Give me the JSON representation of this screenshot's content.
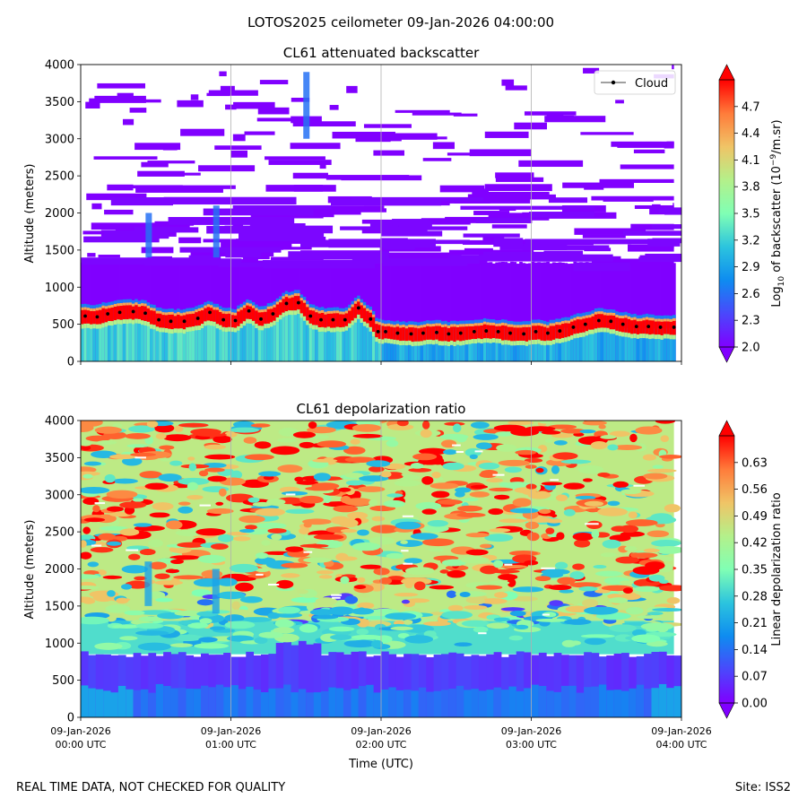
{
  "suptitle": "LOTOS2025 ceilometer 09-Jan-2026 04:00:00",
  "footer_left": "REAL TIME DATA, NOT CHECKED FOR QUALITY",
  "footer_right": "Site: ISS2",
  "chart_data": [
    {
      "type": "heatmap",
      "title": "CL61 attenuated backscatter",
      "ylabel": "Altitude (meters)",
      "xlabel": "",
      "xlim": [
        "09-Jan-2026 00:00 UTC",
        "09-Jan-2026 04:00 UTC"
      ],
      "ylim": [
        0,
        4000
      ],
      "yticks": [
        0,
        500,
        1000,
        1500,
        2000,
        2500,
        3000,
        3500,
        4000
      ],
      "xticks_hours": [
        0,
        1,
        2,
        3,
        4
      ],
      "xtick_labels": [],
      "grid": "vertical lines at hourly ticks",
      "colormap": "rainbow",
      "colorbar_label": "Log10 of backscatter (10^-9/m.sr)",
      "colorbar_label_parts": {
        "pre": "Log",
        "sub": "10",
        "mid": " of backscatter (10",
        "sup": "−9",
        "post": "/m.sr)"
      },
      "colorbar_range": [
        2.0,
        5.0
      ],
      "colorbar_ticks": [
        "2.0",
        "2.3",
        "2.6",
        "2.9",
        "3.2",
        "3.5",
        "3.8",
        "4.1",
        "4.4",
        "4.7"
      ],
      "colorbar_extend": "both",
      "legend": {
        "placement": "top-right",
        "entries": [
          {
            "name": "Cloud",
            "marker": "black dot"
          }
        ]
      },
      "layers": [
        {
          "name": "surface aerosol layer",
          "alt_range_m": [
            0,
            450
          ],
          "log10_value": 3.2
        },
        {
          "name": "elevated aerosol / boundary layer",
          "alt_range_m": [
            450,
            1330
          ],
          "log10_value": 2.0
        },
        {
          "name": "cloud layer",
          "alt_range_m": [
            350,
            800
          ],
          "log10_value": 5.0
        },
        {
          "name": "scattered noise above",
          "alt_range_m": [
            1330,
            4000
          ],
          "log10_value": 2.0
        }
      ],
      "cloud_base_series": {
        "name": "Cloud",
        "x_hours": [
          0.03,
          0.11,
          0.18,
          0.26,
          0.35,
          0.43,
          0.52,
          0.6,
          0.69,
          0.78,
          0.86,
          0.95,
          1.03,
          1.12,
          1.2,
          1.28,
          1.37,
          1.45,
          1.53,
          1.6,
          1.68,
          1.76,
          1.85,
          1.93,
          1.98,
          2.03,
          2.11,
          2.2,
          2.28,
          2.37,
          2.45,
          2.53,
          2.62,
          2.7,
          2.78,
          2.86,
          2.95,
          3.03,
          3.11,
          3.19,
          3.28,
          3.36,
          3.45,
          3.53,
          3.61,
          3.7,
          3.78,
          3.86,
          3.95
        ],
        "altitude_m": [
          610,
          600,
          640,
          660,
          670,
          650,
          560,
          540,
          540,
          580,
          660,
          560,
          550,
          680,
          570,
          640,
          780,
          790,
          610,
          560,
          560,
          560,
          720,
          570,
          400,
          400,
          380,
          370,
          380,
          390,
          370,
          380,
          400,
          410,
          400,
          380,
          370,
          400,
          380,
          410,
          460,
          500,
          550,
          540,
          500,
          470,
          470,
          460,
          460
        ]
      },
      "vertical_streaks": [
        {
          "x_hours": 0.45,
          "alt_range_m": [
            1400,
            2000
          ]
        },
        {
          "x_hours": 0.9,
          "alt_range_m": [
            1400,
            2100
          ]
        },
        {
          "x_hours": 1.5,
          "alt_range_m": [
            3000,
            3900
          ]
        }
      ]
    },
    {
      "type": "heatmap",
      "title": "CL61 depolarization ratio",
      "ylabel": "Altitude (meters)",
      "xlabel": "Time (UTC)",
      "xlim": [
        "09-Jan-2026 00:00 UTC",
        "09-Jan-2026 04:00 UTC"
      ],
      "ylim": [
        0,
        4000
      ],
      "yticks": [
        0,
        500,
        1000,
        1500,
        2000,
        2500,
        3000,
        3500,
        4000
      ],
      "xticks_hours": [
        0,
        1,
        2,
        3,
        4
      ],
      "xtick_labels": [
        {
          "date": "09-Jan-2026",
          "time": "00:00 UTC"
        },
        {
          "date": "09-Jan-2026",
          "time": "01:00 UTC"
        },
        {
          "date": "09-Jan-2026",
          "time": "02:00 UTC"
        },
        {
          "date": "09-Jan-2026",
          "time": "03:00 UTC"
        },
        {
          "date": "09-Jan-2026",
          "time": "04:00 UTC"
        }
      ],
      "grid": "vertical lines at hourly ticks",
      "colormap": "rainbow",
      "colorbar_label": "Linear depolarization ratio",
      "colorbar_range": [
        0.0,
        0.7
      ],
      "colorbar_ticks": [
        "0.00",
        "0.07",
        "0.14",
        "0.21",
        "0.28",
        "0.35",
        "0.42",
        "0.49",
        "0.56",
        "0.63"
      ],
      "colorbar_extend": "both",
      "layers": [
        {
          "name": "surface layer",
          "alt_range_m": [
            0,
            450
          ],
          "depol": 0.12
        },
        {
          "name": "boundary layer",
          "alt_range_m": [
            450,
            850
          ],
          "depol": 0.05
        },
        {
          "name": "transition",
          "alt_range_m": [
            850,
            1300
          ],
          "depol": 0.3
        },
        {
          "name": "upper noise",
          "alt_range_m": [
            1300,
            4000
          ],
          "depol": 0.45
        }
      ]
    }
  ]
}
